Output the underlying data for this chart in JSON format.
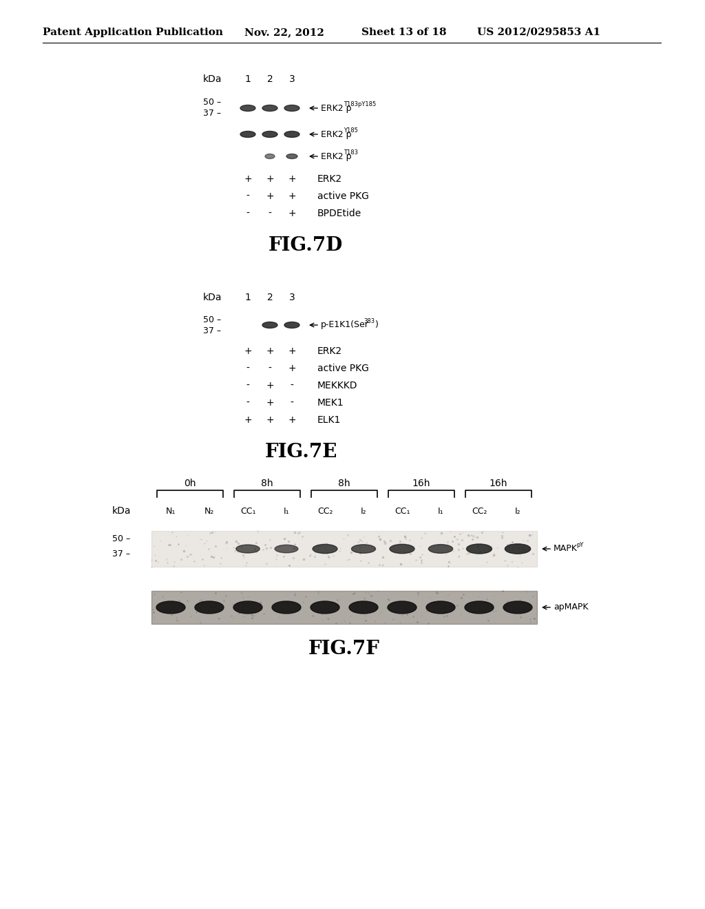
{
  "bg_color": "#ffffff",
  "header_text": "Patent Application Publication",
  "header_date": "Nov. 22, 2012",
  "header_sheet": "Sheet 13 of 18",
  "header_patent": "US 2012/0295853 A1",
  "header_fontsize": 11,
  "fig7d": {
    "title": "FIG.7D",
    "kda_label": "kDa",
    "lane_labels": [
      "1",
      "2",
      "3"
    ],
    "rows": [
      {
        "signs": [
          "+",
          "+",
          "+"
        ],
        "label": "ERK2"
      },
      {
        "signs": [
          "-",
          "+",
          "+"
        ],
        "label": "active PKG"
      },
      {
        "signs": [
          "-",
          "-",
          "+"
        ],
        "label": "BPDEtide"
      }
    ]
  },
  "fig7e": {
    "title": "FIG.7E",
    "kda_label": "kDa",
    "lane_labels": [
      "1",
      "2",
      "3"
    ],
    "rows": [
      {
        "signs": [
          "+",
          "+",
          "+"
        ],
        "label": "ERK2"
      },
      {
        "signs": [
          "-",
          "-",
          "+"
        ],
        "label": "active PKG"
      },
      {
        "signs": [
          "-",
          "+",
          "-"
        ],
        "label": "MEKKKD"
      },
      {
        "signs": [
          "-",
          "+",
          "-"
        ],
        "label": "MEK1"
      },
      {
        "signs": [
          "+",
          "+",
          "+"
        ],
        "label": "ELK1"
      }
    ]
  },
  "fig7f": {
    "title": "FIG.7F",
    "kda_label": "kDa",
    "time_groups": [
      {
        "label": "0h",
        "n_lanes": 2
      },
      {
        "label": "8h",
        "n_lanes": 2
      },
      {
        "label": "8h",
        "n_lanes": 2
      },
      {
        "label": "16h",
        "n_lanes": 2
      },
      {
        "label": "16h",
        "n_lanes": 2
      }
    ],
    "lane_labels": [
      "N₁",
      "N₂",
      "CC₁",
      "I₁",
      "CC₂",
      "I₂",
      "CC₁",
      "I₁",
      "CC₂",
      "I₂"
    ],
    "band1_label": "MAPK",
    "band1_super": "pY",
    "band2_label": "apMAPK"
  }
}
